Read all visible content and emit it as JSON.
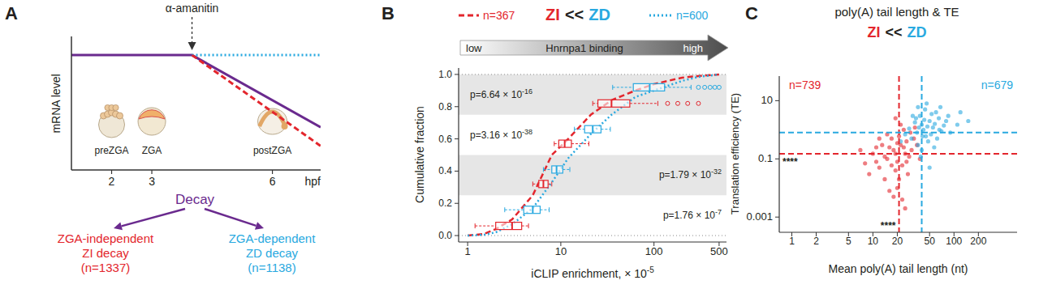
{
  "chart_data": [
    {
      "panel": "A",
      "type": "line",
      "xlabel": "hpf",
      "ylabel": "mRNA level",
      "x": [
        1,
        4,
        7.2
      ],
      "xlim": [
        1,
        7.2
      ],
      "ylim": [
        0,
        1
      ],
      "xticks": [
        2,
        3,
        6
      ],
      "tick_labels": "x",
      "series": [
        {
          "color": "#6a2a8e",
          "line_style": "solid",
          "values": [
            0.86,
            0.86,
            0.32
          ]
        },
        {
          "color": "#29a9e0",
          "line_style": "dotted",
          "values": [
            null,
            0.86,
            0.86
          ]
        },
        {
          "color": "#e3262d",
          "line_style": "dashed",
          "values": [
            null,
            0.86,
            0.18
          ]
        }
      ],
      "annotation": "α-amanitin",
      "stages": [
        "preZGA",
        "ZGA",
        "postZGA"
      ],
      "decay": {
        "label": "Decay",
        "color": "#6a2a8e",
        "branches": [
          {
            "lines": [
              "ZGA-independent",
              "ZI decay",
              "(n=1337)"
            ],
            "color": "#e3262d"
          },
          {
            "lines": [
              "ZGA-dependent",
              "ZD decay",
              "(n=1138)"
            ],
            "color": "#29a9e0"
          }
        ]
      }
    },
    {
      "panel": "B",
      "type": "line",
      "title_parts": [
        {
          "text": "ZI",
          "color": "#e3262d"
        },
        {
          "text": "<<",
          "color": "#231f20"
        },
        {
          "text": "ZD",
          "color": "#29a9e0"
        }
      ],
      "arrow_labels": [
        "low",
        "Hnrnpa1 binding",
        "high"
      ],
      "xlabel": "iCLIP enrichment, × 10",
      "xlabel_exponent": "-5",
      "ylabel": "Cumulative fraction",
      "log": "x",
      "xlim": [
        0.8,
        600
      ],
      "ylim": [
        -0.04,
        1.04
      ],
      "xticks": [
        1,
        10,
        100,
        500
      ],
      "yticks": [
        {
          "value": 0,
          "label": "0.0"
        },
        0.2,
        0.4,
        0.6,
        0.8,
        {
          "value": 1,
          "label": "1.0"
        }
      ],
      "legend": "top",
      "x": [
        1,
        1.5,
        2,
        3,
        5,
        8,
        12,
        21,
        35,
        63,
        100,
        200,
        300,
        500
      ],
      "series": [
        {
          "name": "n=367",
          "color": "#e3262d",
          "line_style": "dashed",
          "values": [
            0,
            0.01,
            0.04,
            0.1,
            0.25,
            0.5,
            0.6,
            0.75,
            0.84,
            0.9,
            0.94,
            0.98,
            0.99,
            1.0
          ],
          "boxes": [
            {
              "y": 0.06,
              "whisker_low": 1.2,
              "q1": 2,
              "median": 3,
              "q3": 3.8,
              "whisker_high": 4.5,
              "outliers": []
            },
            {
              "y": 0.32,
              "whisker_low": 5,
              "q1": 5.8,
              "median": 6.5,
              "q3": 7.3,
              "whisker_high": 8,
              "outliers": []
            },
            {
              "y": 0.57,
              "whisker_low": 8.5,
              "q1": 9.5,
              "median": 11,
              "q3": 13,
              "whisker_high": 20,
              "outliers": []
            },
            {
              "y": 0.82,
              "whisker_low": 22,
              "q1": 25,
              "median": 35,
              "q3": 55,
              "whisker_high": 110,
              "outliers": [
                140,
                180,
                230,
                300
              ]
            }
          ]
        },
        {
          "name": "n=600",
          "color": "#29a9e0",
          "line_style": "dotted",
          "values": [
            0,
            0.005,
            0.02,
            0.07,
            0.17,
            0.33,
            0.48,
            0.63,
            0.75,
            0.86,
            0.9,
            0.96,
            0.985,
            1.0
          ],
          "boxes": [
            {
              "y": 0.16,
              "whisker_low": 2.5,
              "q1": 4,
              "median": 5,
              "q3": 6,
              "whisker_high": 7.5,
              "outliers": []
            },
            {
              "y": 0.41,
              "whisker_low": 6.5,
              "q1": 8,
              "median": 9,
              "q3": 10.5,
              "whisker_high": 12.5,
              "outliers": []
            },
            {
              "y": 0.66,
              "whisker_low": 14,
              "q1": 18,
              "median": 22,
              "q3": 27,
              "whisker_high": 34,
              "outliers": []
            },
            {
              "y": 0.92,
              "whisker_low": 36,
              "q1": 60,
              "median": 90,
              "q3": 130,
              "whisker_high": 250,
              "outliers": [
                300,
                350,
                400,
                450,
                500
              ]
            }
          ]
        }
      ],
      "bands": [
        0,
        0.25,
        0.5,
        0.75,
        1
      ],
      "p_values": [
        {
          "text": "p=1.76 × 10",
          "exponent": "-7"
        },
        {
          "text": "p=1.79 × 10",
          "exponent": "-32"
        },
        {
          "text": "p=3.16 × 10",
          "exponent": "-38"
        },
        {
          "text": "p=6.64 × 10",
          "exponent": "-16"
        }
      ]
    },
    {
      "panel": "C",
      "type": "scatter",
      "title": "poly(A) tail length & TE",
      "title_parts": [
        {
          "text": "ZI",
          "color": "#e3262d"
        },
        {
          "text": "<<",
          "color": "#231f20"
        },
        {
          "text": "ZD",
          "color": "#29a9e0"
        }
      ],
      "xlabel": "Mean poly(A) tail length (nt)",
      "ylabel": "Translation efficiency (TE)",
      "log": true,
      "xlim": [
        0.7,
        600
      ],
      "ylim": [
        0.0003,
        70
      ],
      "xticks": [
        1,
        2,
        5,
        10,
        20,
        50,
        100,
        200
      ],
      "yticks": [
        0.001,
        0.1,
        10
      ],
      "marker": "circle",
      "series": [
        {
          "name": "n=739",
          "color": "#e3262d",
          "line_style": "dashed",
          "xline": 21,
          "yline": 0.15,
          "x": [
            12,
            15,
            18,
            20,
            22,
            25,
            14,
            17,
            19,
            23,
            26,
            28,
            16,
            21,
            24,
            13,
            11,
            10,
            9,
            30,
            32,
            27,
            20,
            18,
            15,
            22,
            35,
            12,
            8,
            19,
            17,
            24,
            29,
            21,
            14,
            26,
            16,
            23,
            38,
            11,
            19,
            25,
            7,
            33,
            20
          ],
          "values": [
            0.05,
            0.1,
            0.2,
            0.08,
            0.3,
            0.15,
            0.02,
            0.5,
            0.04,
            0.06,
            0.4,
            0.12,
            0.25,
            0.6,
            1.0,
            0.3,
            0.08,
            0.15,
            0.03,
            0.2,
            0.5,
            0.03,
            0.01,
            0.005,
            0.7,
            1.5,
            0.3,
            0.5,
            0.07,
            0.15,
            0.06,
            0.25,
            0.8,
            0.02,
            0.12,
            0.08,
            0.008,
            0.004,
            0.1,
            0.25,
            2.5,
            0.002,
            0.2,
            1.2,
            0.35
          ]
        },
        {
          "name": "n=679",
          "color": "#29a9e0",
          "line_style": "dashed",
          "xline": 40,
          "yline": 0.8,
          "x": [
            35,
            40,
            45,
            50,
            38,
            42,
            55,
            60,
            30,
            33,
            48,
            65,
            70,
            36,
            44,
            52,
            58,
            40,
            28,
            75,
            85,
            46,
            62,
            34,
            39,
            53,
            25,
            68,
            90,
            110,
            47,
            41,
            57,
            37,
            31,
            80,
            43,
            50,
            66,
            120,
            22,
            150,
            36
          ],
          "values": [
            0.8,
            1.5,
            0.6,
            2,
            3,
            1,
            1.2,
            4,
            0.5,
            1.8,
            0.4,
            2.5,
            0.9,
            0.3,
            5,
            0.7,
            1.6,
            0.2,
            1.1,
            1.4,
            3,
            8,
            0.5,
            2.5,
            0.12,
            3.5,
            0.7,
            6,
            0.8,
            1.5,
            1.3,
            0.6,
            0.25,
            1.2,
            3,
            2,
            2.2,
            0.05,
            1,
            4,
            0.4,
            2,
            6
          ]
        }
      ],
      "annotations": [
        "****",
        "****"
      ]
    }
  ]
}
